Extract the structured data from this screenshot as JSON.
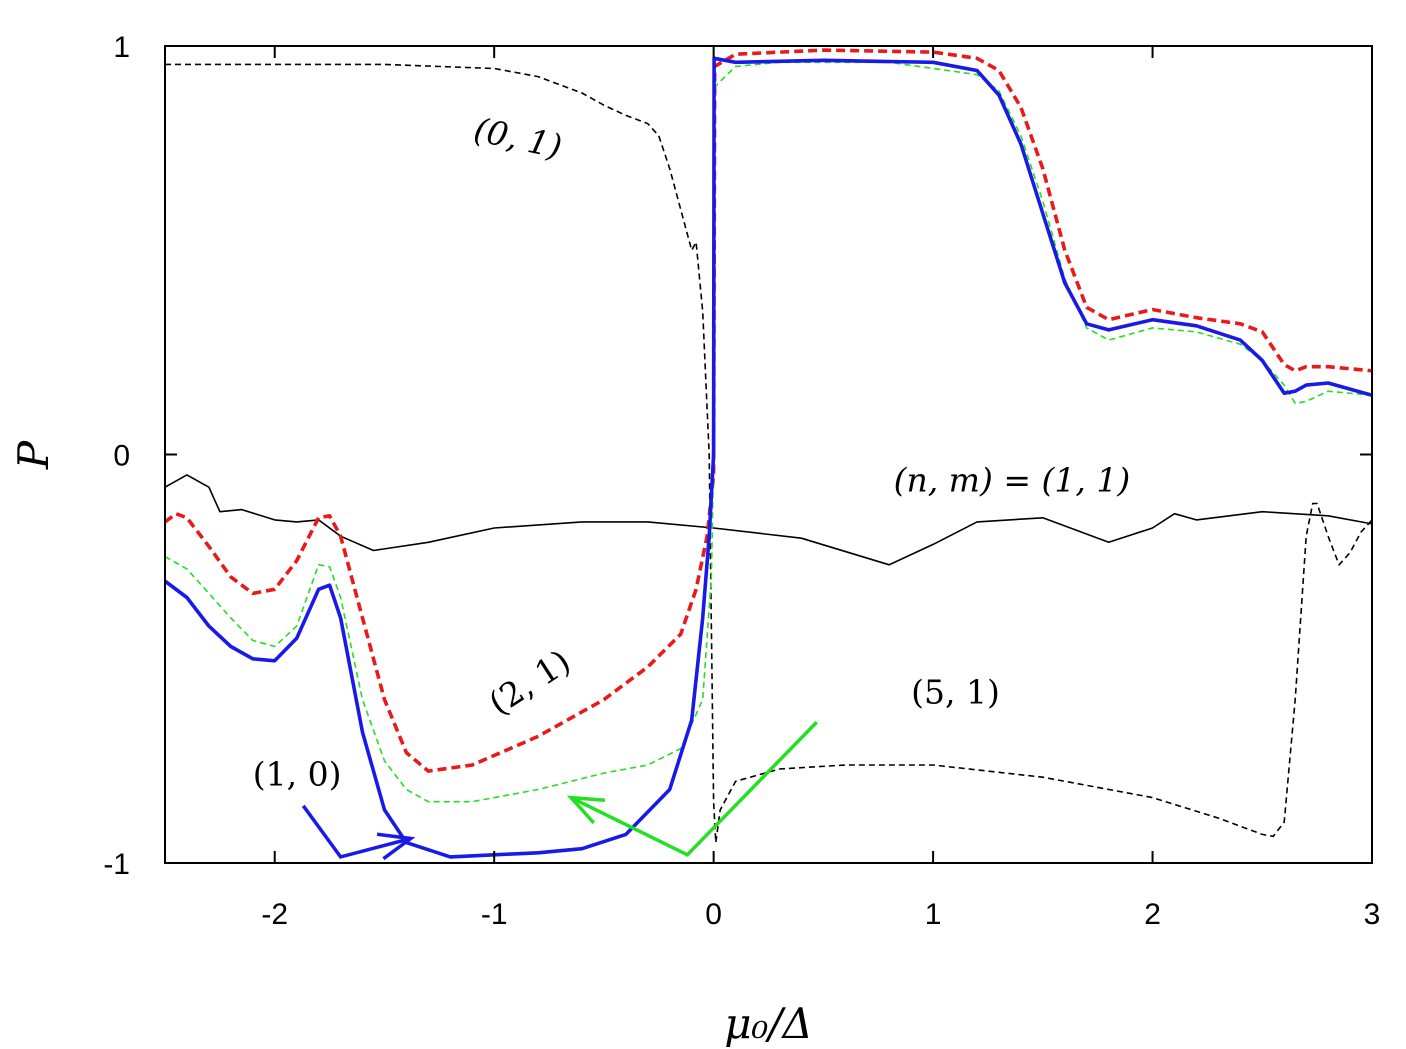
{
  "chart_data": {
    "type": "line",
    "title": "",
    "xlabel": "μ₀/Δ",
    "ylabel": "P",
    "xlim": [
      -2.5,
      3
    ],
    "ylim": [
      -1,
      1
    ],
    "x_ticks": [
      -2,
      -1,
      0,
      1,
      2,
      3
    ],
    "x_tick_labels": [
      "-2",
      "-1",
      "0",
      "1",
      "2",
      "3"
    ],
    "y_ticks": [
      -1,
      0,
      1
    ],
    "y_tick_labels": [
      "-1",
      "0",
      "1"
    ],
    "grid": false,
    "legend": "none",
    "series": [
      {
        "color": "#000000",
        "style": "solid",
        "width": 1.6,
        "points": [
          [
            -2.5,
            -0.08
          ],
          [
            -2.4,
            -0.05
          ],
          [
            -2.3,
            -0.08
          ],
          [
            -2.25,
            -0.14
          ],
          [
            -2.15,
            -0.135
          ],
          [
            -2.0,
            -0.16
          ],
          [
            -1.9,
            -0.165
          ],
          [
            -1.8,
            -0.16
          ],
          [
            -1.7,
            -0.2
          ],
          [
            -1.55,
            -0.235
          ],
          [
            -1.3,
            -0.215
          ],
          [
            -1.0,
            -0.18
          ],
          [
            -0.6,
            -0.165
          ],
          [
            -0.3,
            -0.165
          ],
          [
            0.0,
            -0.18
          ],
          [
            0.4,
            -0.205
          ],
          [
            0.8,
            -0.27
          ],
          [
            1.0,
            -0.22
          ],
          [
            1.2,
            -0.165
          ],
          [
            1.5,
            -0.155
          ],
          [
            1.8,
            -0.215
          ],
          [
            2.0,
            -0.18
          ],
          [
            2.1,
            -0.145
          ],
          [
            2.2,
            -0.16
          ],
          [
            2.5,
            -0.14
          ],
          [
            2.8,
            -0.15
          ],
          [
            3.0,
            -0.17
          ]
        ]
      },
      {
        "color": "#000000",
        "style": "dashed",
        "width": 1.6,
        "points": [
          [
            -2.5,
            0.955
          ],
          [
            -2.0,
            0.955
          ],
          [
            -1.5,
            0.955
          ],
          [
            -1.0,
            0.945
          ],
          [
            -0.8,
            0.925
          ],
          [
            -0.6,
            0.885
          ],
          [
            -0.5,
            0.855
          ],
          [
            -0.4,
            0.83
          ],
          [
            -0.3,
            0.81
          ],
          [
            -0.25,
            0.78
          ],
          [
            -0.2,
            0.7
          ],
          [
            -0.15,
            0.6
          ],
          [
            -0.1,
            0.5
          ],
          [
            -0.08,
            0.52
          ],
          [
            -0.05,
            0.35
          ],
          [
            -0.02,
            0.0
          ],
          [
            0.0,
            -0.85
          ],
          [
            0.01,
            -0.95
          ],
          [
            0.03,
            -0.87
          ],
          [
            0.1,
            -0.8
          ],
          [
            0.3,
            -0.77
          ],
          [
            0.6,
            -0.76
          ],
          [
            1.0,
            -0.76
          ],
          [
            1.5,
            -0.79
          ],
          [
            2.0,
            -0.84
          ],
          [
            2.3,
            -0.89
          ],
          [
            2.5,
            -0.93
          ],
          [
            2.55,
            -0.935
          ],
          [
            2.6,
            -0.9
          ],
          [
            2.65,
            -0.6
          ],
          [
            2.7,
            -0.2
          ],
          [
            2.73,
            -0.12
          ],
          [
            2.75,
            -0.12
          ],
          [
            2.8,
            -0.2
          ],
          [
            2.85,
            -0.27
          ],
          [
            2.9,
            -0.24
          ],
          [
            2.95,
            -0.19
          ],
          [
            3.0,
            -0.16
          ]
        ]
      },
      {
        "color": "#e81a1a",
        "style": "dashed",
        "width": 3.6,
        "points": [
          [
            -2.5,
            -0.165
          ],
          [
            -2.45,
            -0.145
          ],
          [
            -2.4,
            -0.155
          ],
          [
            -2.3,
            -0.225
          ],
          [
            -2.2,
            -0.3
          ],
          [
            -2.1,
            -0.34
          ],
          [
            -2.0,
            -0.33
          ],
          [
            -1.9,
            -0.26
          ],
          [
            -1.8,
            -0.155
          ],
          [
            -1.75,
            -0.15
          ],
          [
            -1.7,
            -0.2
          ],
          [
            -1.6,
            -0.4
          ],
          [
            -1.5,
            -0.6
          ],
          [
            -1.4,
            -0.73
          ],
          [
            -1.3,
            -0.775
          ],
          [
            -1.1,
            -0.76
          ],
          [
            -0.8,
            -0.69
          ],
          [
            -0.5,
            -0.6
          ],
          [
            -0.3,
            -0.52
          ],
          [
            -0.15,
            -0.44
          ],
          [
            -0.08,
            -0.33
          ],
          [
            -0.03,
            -0.2
          ],
          [
            0.0,
            -0.05
          ],
          [
            0.005,
            0.95
          ],
          [
            0.1,
            0.98
          ],
          [
            0.5,
            0.99
          ],
          [
            1.0,
            0.985
          ],
          [
            1.2,
            0.97
          ],
          [
            1.3,
            0.94
          ],
          [
            1.4,
            0.85
          ],
          [
            1.5,
            0.7
          ],
          [
            1.6,
            0.5
          ],
          [
            1.7,
            0.36
          ],
          [
            1.8,
            0.33
          ],
          [
            2.0,
            0.355
          ],
          [
            2.2,
            0.335
          ],
          [
            2.4,
            0.32
          ],
          [
            2.5,
            0.3
          ],
          [
            2.6,
            0.22
          ],
          [
            2.65,
            0.205
          ],
          [
            2.7,
            0.215
          ],
          [
            2.8,
            0.215
          ],
          [
            3.0,
            0.205
          ]
        ]
      },
      {
        "color": "#22e022",
        "style": "dashed",
        "width": 1.6,
        "points": [
          [
            -2.5,
            -0.25
          ],
          [
            -2.4,
            -0.28
          ],
          [
            -2.3,
            -0.34
          ],
          [
            -2.2,
            -0.4
          ],
          [
            -2.1,
            -0.455
          ],
          [
            -2.0,
            -0.47
          ],
          [
            -1.9,
            -0.42
          ],
          [
            -1.8,
            -0.27
          ],
          [
            -1.75,
            -0.275
          ],
          [
            -1.7,
            -0.35
          ],
          [
            -1.6,
            -0.6
          ],
          [
            -1.5,
            -0.75
          ],
          [
            -1.4,
            -0.82
          ],
          [
            -1.3,
            -0.85
          ],
          [
            -1.1,
            -0.85
          ],
          [
            -0.8,
            -0.82
          ],
          [
            -0.5,
            -0.78
          ],
          [
            -0.3,
            -0.76
          ],
          [
            -0.15,
            -0.72
          ],
          [
            -0.05,
            -0.6
          ],
          [
            -0.01,
            -0.3
          ],
          [
            0.0,
            0.0
          ],
          [
            0.005,
            0.9
          ],
          [
            0.1,
            0.95
          ],
          [
            0.3,
            0.96
          ],
          [
            0.8,
            0.96
          ],
          [
            1.2,
            0.93
          ],
          [
            1.3,
            0.89
          ],
          [
            1.4,
            0.78
          ],
          [
            1.5,
            0.62
          ],
          [
            1.6,
            0.43
          ],
          [
            1.7,
            0.31
          ],
          [
            1.8,
            0.28
          ],
          [
            2.0,
            0.31
          ],
          [
            2.2,
            0.3
          ],
          [
            2.4,
            0.27
          ],
          [
            2.5,
            0.23
          ],
          [
            2.6,
            0.17
          ],
          [
            2.65,
            0.125
          ],
          [
            2.7,
            0.13
          ],
          [
            2.8,
            0.155
          ],
          [
            3.0,
            0.145
          ]
        ]
      },
      {
        "color": "#1a1ae8",
        "style": "solid",
        "width": 3.6,
        "points": [
          [
            -2.5,
            -0.31
          ],
          [
            -2.4,
            -0.35
          ],
          [
            -2.3,
            -0.42
          ],
          [
            -2.2,
            -0.47
          ],
          [
            -2.1,
            -0.5
          ],
          [
            -2.0,
            -0.505
          ],
          [
            -1.9,
            -0.45
          ],
          [
            -1.8,
            -0.33
          ],
          [
            -1.75,
            -0.32
          ],
          [
            -1.7,
            -0.4
          ],
          [
            -1.6,
            -0.68
          ],
          [
            -1.5,
            -0.87
          ],
          [
            -1.4,
            -0.95
          ],
          [
            -1.2,
            -0.985
          ],
          [
            -1.0,
            -0.98
          ],
          [
            -0.8,
            -0.975
          ],
          [
            -0.6,
            -0.965
          ],
          [
            -0.4,
            -0.93
          ],
          [
            -0.2,
            -0.82
          ],
          [
            -0.1,
            -0.65
          ],
          [
            -0.05,
            -0.4
          ],
          [
            -0.02,
            -0.2
          ],
          [
            0.0,
            0.0
          ],
          [
            0.002,
            0.97
          ],
          [
            0.1,
            0.96
          ],
          [
            0.5,
            0.965
          ],
          [
            1.0,
            0.96
          ],
          [
            1.2,
            0.94
          ],
          [
            1.3,
            0.88
          ],
          [
            1.4,
            0.76
          ],
          [
            1.5,
            0.59
          ],
          [
            1.6,
            0.42
          ],
          [
            1.7,
            0.32
          ],
          [
            1.8,
            0.305
          ],
          [
            2.0,
            0.33
          ],
          [
            2.2,
            0.315
          ],
          [
            2.4,
            0.28
          ],
          [
            2.5,
            0.23
          ],
          [
            2.6,
            0.15
          ],
          [
            2.65,
            0.155
          ],
          [
            2.7,
            0.17
          ],
          [
            2.8,
            0.175
          ],
          [
            3.0,
            0.145
          ]
        ]
      }
    ],
    "arrows": [
      {
        "color": "#1a1ae8",
        "points": [
          [
            -1.87,
            -0.86
          ],
          [
            -1.7,
            -0.985
          ],
          [
            -1.38,
            -0.94
          ]
        ]
      },
      {
        "color": "#22e022",
        "points": [
          [
            0.47,
            -0.655
          ],
          [
            -0.12,
            -0.98
          ],
          [
            -0.65,
            -0.84
          ]
        ]
      }
    ],
    "annotations": [
      {
        "text": "(0, 1)",
        "x": -1.1,
        "y": 0.77,
        "rotate": 12,
        "upright": false
      },
      {
        "text": "(n, m) = (1, 1)",
        "x": 0.82,
        "y": -0.09,
        "rotate": 0,
        "upright": false
      },
      {
        "text": "(2, 1)",
        "x": -0.98,
        "y": -0.64,
        "rotate": -33,
        "upright": true
      },
      {
        "text": "(1, 0)",
        "x": -2.1,
        "y": -0.81,
        "rotate": 0,
        "upright": true
      },
      {
        "text": "(5, 1)",
        "x": 0.9,
        "y": -0.61,
        "rotate": 0,
        "upright": true
      }
    ]
  }
}
